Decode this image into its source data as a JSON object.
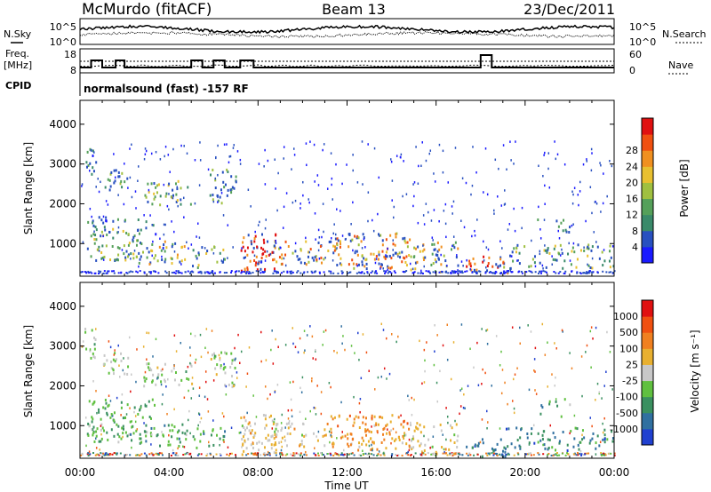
{
  "header": {
    "station": "McMurdo (fitACF)",
    "beam": "Beam 13",
    "date": "23/Dec/2011"
  },
  "noise_panel": {
    "left_label": "N.Sky",
    "right_label": "N.Search",
    "left_ticks": [
      "10^5",
      "10^0"
    ],
    "right_ticks": [
      "10^5",
      "10^0"
    ]
  },
  "freq_panel": {
    "left_label_line1": "Freq.",
    "left_label_line2": "[MHz]",
    "right_label": "Nave",
    "left_ticks": [
      "18",
      "8"
    ],
    "right_ticks": [
      "60",
      "0"
    ]
  },
  "cpid_panel": {
    "label": "CPID",
    "text": "normalsound (fast) -157 RF"
  },
  "x_axis": {
    "label": "Time UT",
    "ticks": [
      "00:00",
      "04:00",
      "08:00",
      "12:00",
      "16:00",
      "20:00",
      "00:00"
    ]
  },
  "chart_data": [
    {
      "type": "heatmap",
      "title": "",
      "xlabel": "",
      "ylabel": "Slant Range [km]",
      "x_range_hours": [
        0,
        24
      ],
      "ylim": [
        180,
        4600
      ],
      "y_ticks": [
        "1000",
        "2000",
        "3000",
        "4000"
      ],
      "colorbar": {
        "label": "Power [dB]",
        "ticks": [
          "4",
          "8",
          "12",
          "16",
          "20",
          "24",
          "28"
        ],
        "colors": [
          "#1a1aff",
          "#2850c0",
          "#3a8a6a",
          "#55a05a",
          "#a0c040",
          "#e8c030",
          "#f09020",
          "#f05010",
          "#e01010"
        ]
      }
    },
    {
      "type": "heatmap",
      "title": "",
      "xlabel": "Time UT",
      "ylabel": "Slant Range [km]",
      "x_range_hours": [
        0,
        24
      ],
      "ylim": [
        180,
        4600
      ],
      "y_ticks": [
        "1000",
        "2000",
        "3000",
        "4000"
      ],
      "colorbar": {
        "label": "Velocity [m s⁻¹]",
        "ticks": [
          "1000",
          "500",
          "100",
          "25",
          "-25",
          "-100",
          "-500",
          "-1000"
        ],
        "colors": [
          "#2040d0",
          "#3070a0",
          "#3a9060",
          "#60c040",
          "#c8c8c8",
          "#e8b030",
          "#f08020",
          "#f05010",
          "#e01010"
        ]
      }
    }
  ]
}
